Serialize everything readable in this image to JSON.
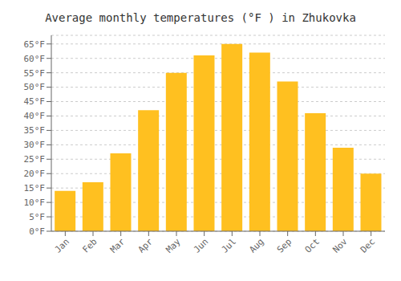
{
  "chart_data": {
    "type": "bar",
    "title": "Average monthly temperatures (°F ) in Zhukovka",
    "categories": [
      "Jan",
      "Feb",
      "Mar",
      "Apr",
      "May",
      "Jun",
      "Jul",
      "Aug",
      "Sep",
      "Oct",
      "Nov",
      "Dec"
    ],
    "values": [
      14,
      17,
      27,
      42,
      55,
      61,
      65,
      62,
      52,
      41,
      29,
      20
    ],
    "color": "#FFC020",
    "ylim": [
      0,
      68
    ],
    "yticks": [
      {
        "value": 0,
        "label": "0°F"
      },
      {
        "value": 5,
        "label": "5°F"
      },
      {
        "value": 10,
        "label": "10°F"
      },
      {
        "value": 15,
        "label": "15°F"
      },
      {
        "value": 20,
        "label": "20°F"
      },
      {
        "value": 25,
        "label": "25°F"
      },
      {
        "value": 30,
        "label": "30°F"
      },
      {
        "value": 35,
        "label": "35°F"
      },
      {
        "value": 40,
        "label": "40°F"
      },
      {
        "value": 45,
        "label": "45°F"
      },
      {
        "value": 50,
        "label": "50°F"
      },
      {
        "value": 55,
        "label": "55°F"
      },
      {
        "value": 60,
        "label": "60°F"
      },
      {
        "value": 65,
        "label": "65°F"
      }
    ],
    "grid": true
  }
}
